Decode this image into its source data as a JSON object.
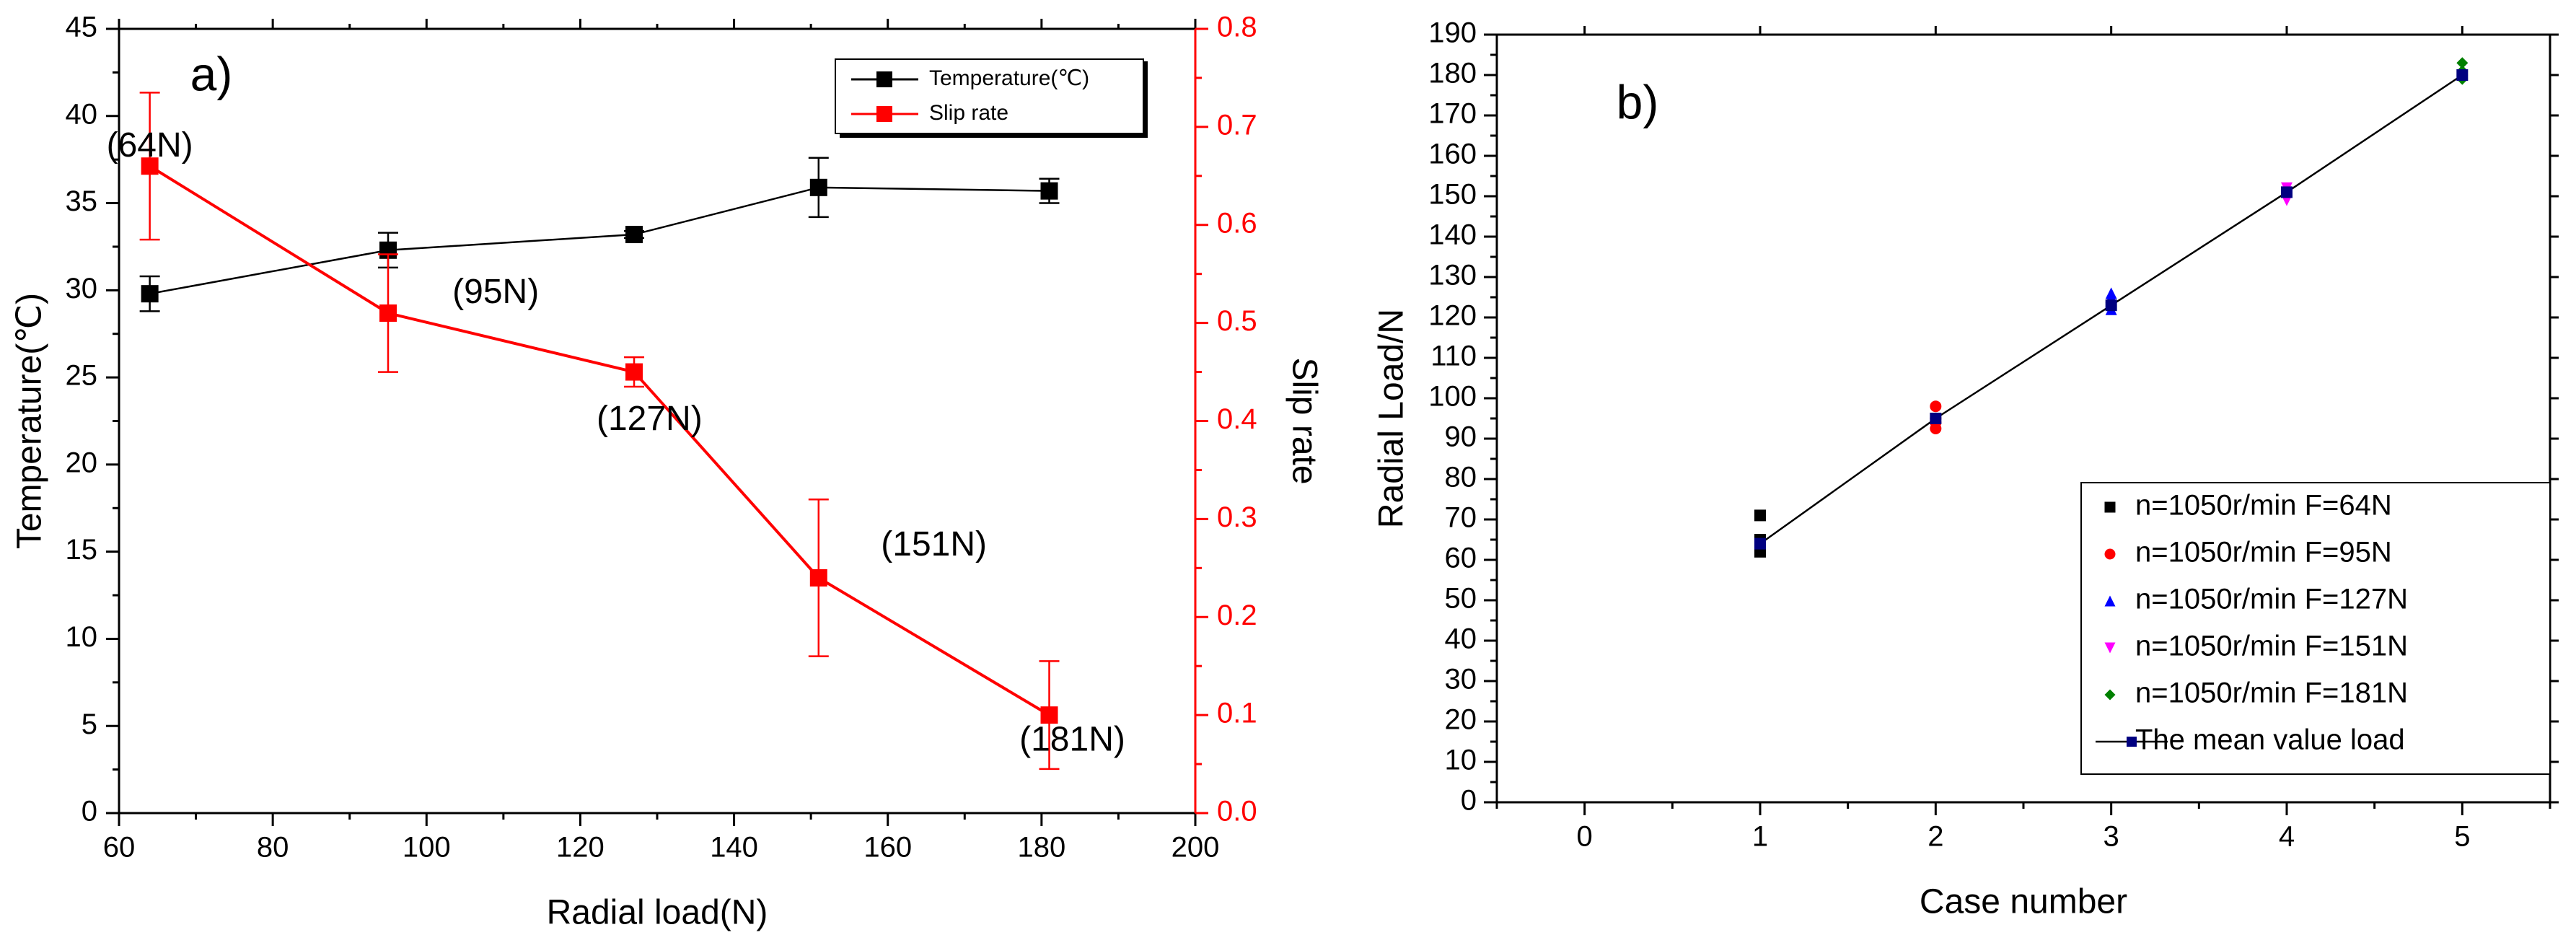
{
  "chart_data": [
    {
      "panel_label": "a)",
      "type": "line",
      "xlabel": "Radial load(N)",
      "ylabel_left": "Temperature(℃)",
      "ylabel_right": "Slip rate",
      "xlim": [
        60,
        200
      ],
      "ylim_left": [
        0,
        45
      ],
      "ylim_right": [
        0.0,
        0.8
      ],
      "x_ticks": [
        "60",
        "80",
        "100",
        "120",
        "140",
        "160",
        "180",
        "200"
      ],
      "y_left_ticks": [
        "0",
        "5",
        "10",
        "15",
        "20",
        "25",
        "30",
        "35",
        "40",
        "45"
      ],
      "y_right_ticks": [
        "0.0",
        "0.1",
        "0.2",
        "0.3",
        "0.4",
        "0.5",
        "0.6",
        "0.7",
        "0.8"
      ],
      "right_axis_color": "#ff0000",
      "series": [
        {
          "name": "Temperature(℃)",
          "axis": "left",
          "color": "#000000",
          "x": [
            64,
            95,
            127,
            151,
            181
          ],
          "values": [
            29.8,
            32.3,
            33.2,
            35.9,
            35.7
          ],
          "err": [
            1.0,
            1.0,
            0.2,
            1.7,
            0.7
          ]
        },
        {
          "name": "Slip rate",
          "axis": "right",
          "color": "#ff0000",
          "x": [
            64,
            95,
            127,
            151,
            181
          ],
          "values": [
            0.66,
            0.51,
            0.45,
            0.24,
            0.1
          ],
          "err": [
            0.075,
            0.06,
            0.015,
            0.08,
            0.055
          ]
        }
      ],
      "annotations": [
        {
          "text": "(64N)",
          "x": 64,
          "y_left": 38.2
        },
        {
          "text": "(95N)",
          "x": 109,
          "y_left": 29.8
        },
        {
          "text": "(127N)",
          "x": 129,
          "y_left": 22.5
        },
        {
          "text": "(151N)",
          "x": 166,
          "y_left": 15.3
        },
        {
          "text": "(181N)",
          "x": 184,
          "y_left": 4.1
        }
      ],
      "legend_position": "top-right"
    },
    {
      "panel_label": "b)",
      "type": "scatter",
      "xlabel": "Case number",
      "ylabel": "Radial Load/N",
      "xlim": [
        -0.5,
        5.5
      ],
      "ylim": [
        0,
        190
      ],
      "x_ticks": [
        "0",
        "1",
        "2",
        "3",
        "4",
        "5"
      ],
      "y_ticks": [
        "0",
        "10",
        "20",
        "30",
        "40",
        "50",
        "60",
        "70",
        "80",
        "90",
        "100",
        "110",
        "120",
        "130",
        "140",
        "150",
        "160",
        "170",
        "180",
        "190"
      ],
      "series": [
        {
          "name": "n=1050r/min F=64N",
          "marker": "square",
          "color": "#000000",
          "points": [
            [
              1,
              71
            ],
            [
              1,
              64
            ],
            [
              1,
              62
            ],
            [
              1,
              65
            ]
          ]
        },
        {
          "name": "n=1050r/min F=95N",
          "marker": "circle",
          "color": "#ff0000",
          "points": [
            [
              2,
              98
            ],
            [
              2,
              95
            ],
            [
              2,
              92.5
            ],
            [
              2,
              94
            ]
          ]
        },
        {
          "name": "n=1050r/min F=127N",
          "marker": "triangle-up",
          "color": "#0000ff",
          "points": [
            [
              3,
              126
            ],
            [
              3,
              124
            ],
            [
              3,
              122
            ],
            [
              3,
              125
            ]
          ]
        },
        {
          "name": "n=1050r/min F=151N",
          "marker": "triangle-down",
          "color": "#ff00ff",
          "points": [
            [
              4,
              152
            ],
            [
              4,
              150
            ],
            [
              4,
              149
            ],
            [
              4,
              151
            ]
          ]
        },
        {
          "name": "n=1050r/min F=181N",
          "marker": "diamond",
          "color": "#008000",
          "points": [
            [
              5,
              183
            ],
            [
              5,
              181
            ],
            [
              5,
              179
            ],
            [
              5,
              180
            ]
          ]
        },
        {
          "name": "The mean value load",
          "marker": "square-line",
          "color": "#000080",
          "line_color": "#000000",
          "points": [
            [
              1,
              64
            ],
            [
              2,
              95
            ],
            [
              3,
              123
            ],
            [
              4,
              151
            ],
            [
              5,
              180
            ]
          ]
        }
      ],
      "legend_position": "bottom-right"
    }
  ]
}
